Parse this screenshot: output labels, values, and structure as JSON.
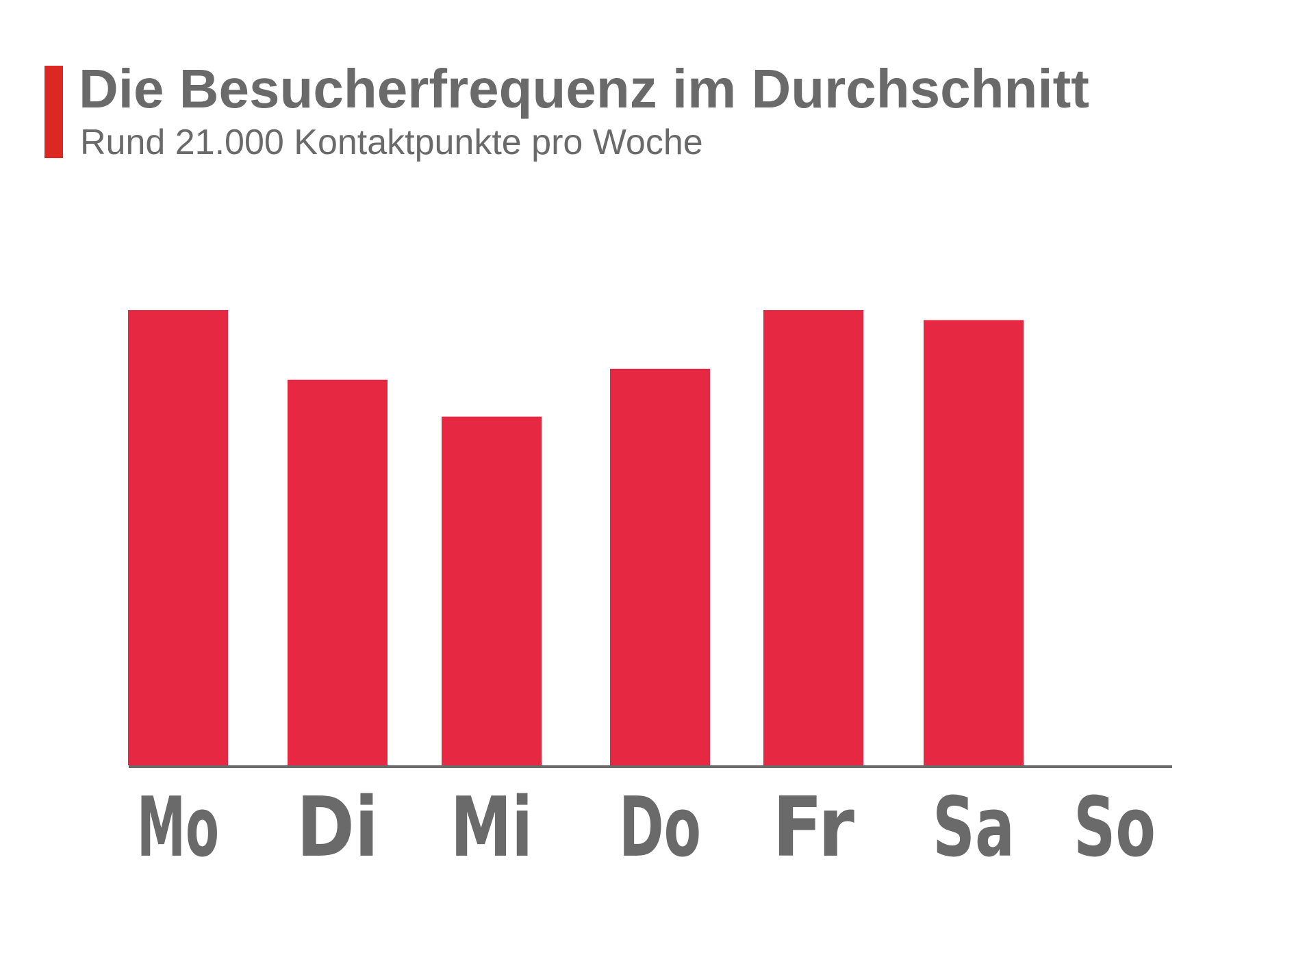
{
  "header": {
    "title": "Die Besucherfrequenz im Durchschnitt",
    "subtitle": "Rund 21.000 Kontaktpunkte pro Woche"
  },
  "colors": {
    "accent": "#dc2822",
    "bar": "#e62842",
    "text": "#6a6a6a",
    "axis": "#6a6a6a"
  },
  "chart_data": {
    "type": "bar",
    "title": "Die Besucherfrequenz im Durchschnitt",
    "subtitle": "Rund 21.000 Kontaktpunkte pro Woche",
    "categories": [
      "Mo",
      "Di",
      "Mi",
      "Do",
      "Fr",
      "Sa",
      "So"
    ],
    "values": [
      100,
      84.7,
      76.6,
      87.1,
      100,
      97.8,
      0
    ],
    "ylim": [
      0,
      100
    ],
    "grid": false,
    "legend": "none",
    "xlabel": "",
    "ylabel": ""
  }
}
